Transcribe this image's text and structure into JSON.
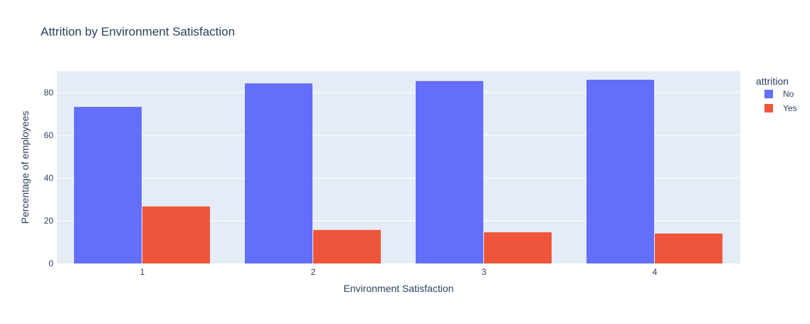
{
  "chart_data": {
    "type": "bar",
    "title": "Attrition by Environment Satisfaction",
    "xlabel": "Environment Satisfaction",
    "ylabel": "Percentage of employees",
    "categories": [
      "1",
      "2",
      "3",
      "4"
    ],
    "ylim": [
      0,
      90
    ],
    "yticks": [
      0,
      20,
      40,
      60,
      80
    ],
    "grid": true,
    "legend": {
      "title": "attrition",
      "placement": "top-right"
    },
    "series": [
      {
        "name": "No",
        "color": "#636efa",
        "values": [
          73.3,
          84.3,
          85.4,
          86.0
        ]
      },
      {
        "name": "Yes",
        "color": "#ef553b",
        "values": [
          26.7,
          15.7,
          14.6,
          14.0
        ]
      }
    ]
  }
}
